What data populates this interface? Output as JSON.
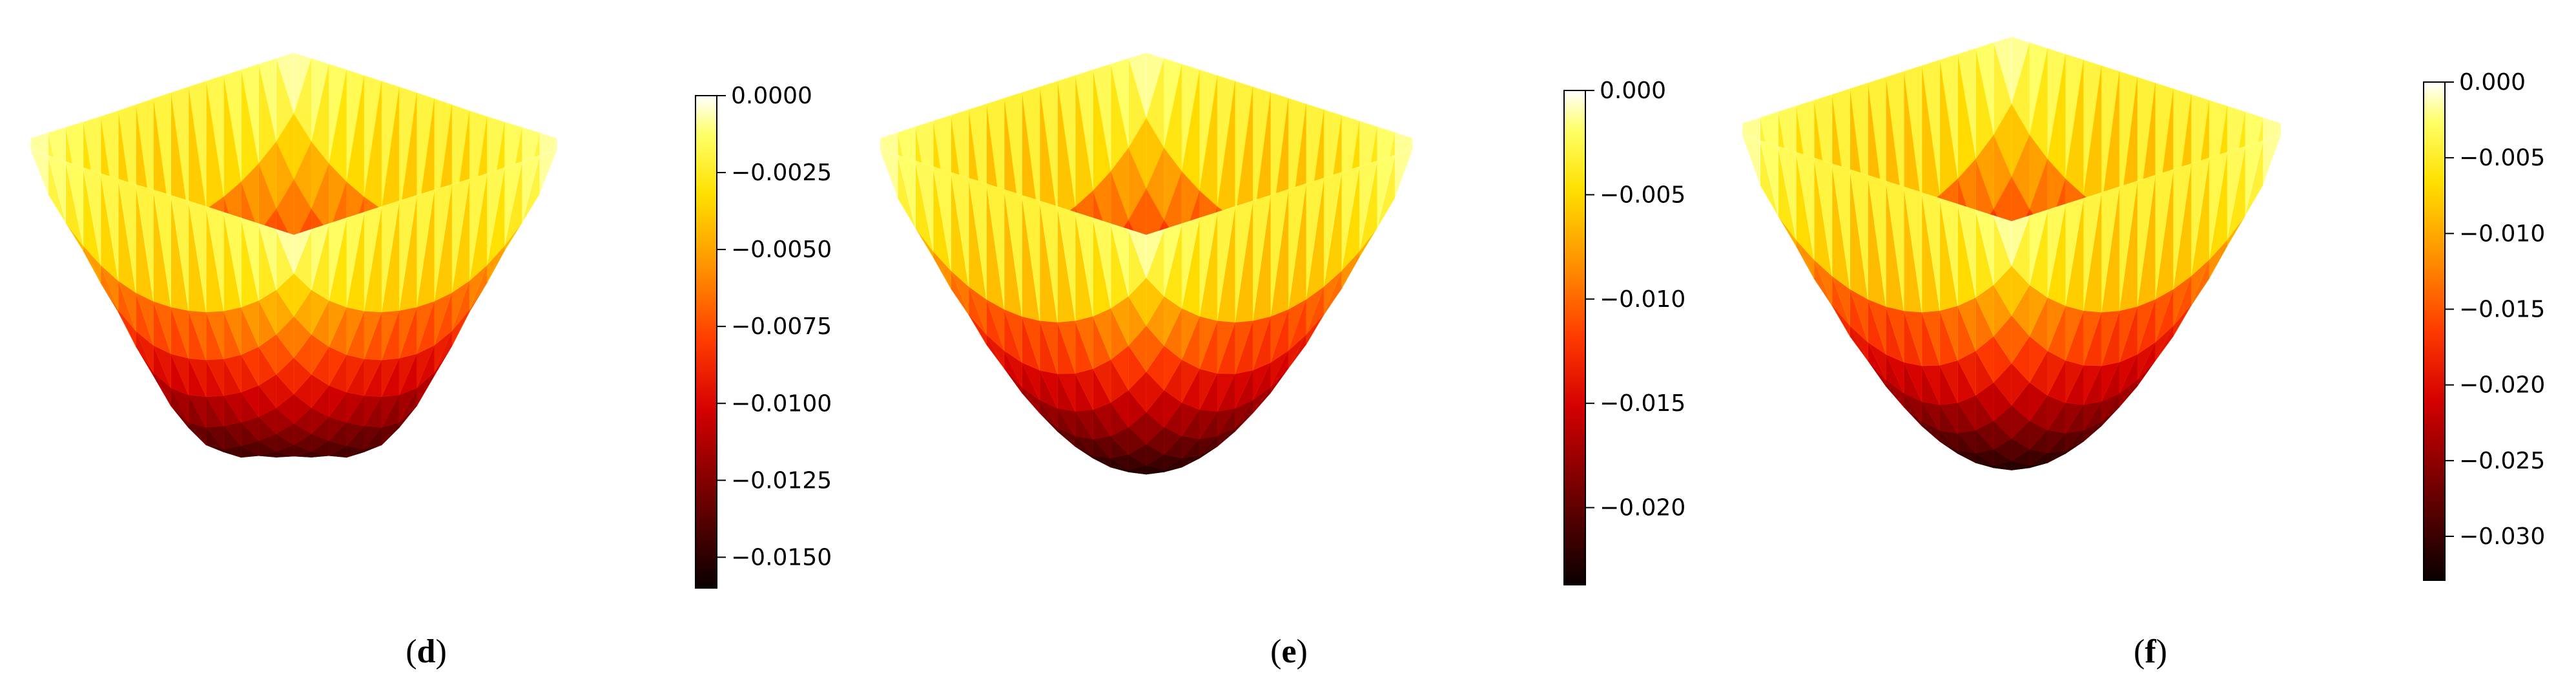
{
  "chart_data": [
    {
      "type": "surface",
      "colormap": "hot",
      "panel_label": {
        "open": "(",
        "letter": "d",
        "close": ")"
      },
      "colorbar": {
        "min": -0.016,
        "max": 0.0,
        "ticks": [
          0.0,
          -0.0025,
          -0.005,
          -0.0075,
          -0.01,
          -0.0125,
          -0.015
        ],
        "tick_labels": [
          "0.0000",
          "−0.0025",
          "−0.0050",
          "−0.0075",
          "−0.0100",
          "−0.0125",
          "−0.0150"
        ]
      }
    },
    {
      "type": "surface",
      "colormap": "hot",
      "panel_label": {
        "open": "(",
        "letter": "e",
        "close": ")"
      },
      "colorbar": {
        "min": -0.0237,
        "max": 0.0,
        "ticks": [
          0.0,
          -0.005,
          -0.01,
          -0.015,
          -0.02
        ],
        "tick_labels": [
          "0.000",
          "−0.005",
          "−0.010",
          "−0.015",
          "−0.020"
        ]
      }
    },
    {
      "type": "surface",
      "colormap": "hot",
      "panel_label": {
        "open": "(",
        "letter": "f",
        "close": ")"
      },
      "colorbar": {
        "min": -0.0329,
        "max": 0.0,
        "ticks": [
          0.0,
          -0.005,
          -0.01,
          -0.015,
          -0.02,
          -0.025,
          -0.03
        ],
        "tick_labels": [
          "0.000",
          "−0.005",
          "−0.010",
          "−0.015",
          "−0.020",
          "−0.025",
          "−0.030"
        ]
      }
    }
  ]
}
